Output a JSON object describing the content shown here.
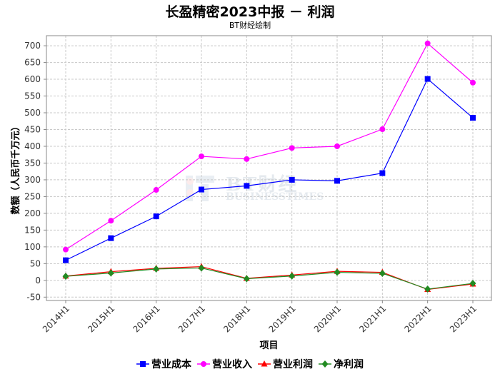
{
  "chart_data": {
    "type": "line",
    "title": "长盈精密2023中报 － 利润",
    "subtitle": "BT财经绘制",
    "xlabel": "项目",
    "ylabel": "数额（人民币千万元）",
    "categories": [
      "2014H1",
      "2015H1",
      "2016H1",
      "2017H1",
      "2018H1",
      "2019H1",
      "2020H1",
      "2021H1",
      "2022H1",
      "2023H1"
    ],
    "ylim": [
      -60,
      730
    ],
    "yticks": [
      -50,
      0,
      50,
      100,
      150,
      200,
      250,
      300,
      350,
      400,
      450,
      500,
      550,
      600,
      650,
      700
    ],
    "grid": true,
    "legend_position": "bottom",
    "series": [
      {
        "name": "营业成本",
        "color": "#0000ff",
        "marker": "square",
        "values": [
          60,
          126,
          191,
          271,
          282,
          300,
          297,
          320,
          601,
          485
        ]
      },
      {
        "name": "营业收入",
        "color": "#ff00ff",
        "marker": "circle",
        "values": [
          92,
          178,
          270,
          370,
          362,
          395,
          400,
          451,
          707,
          590
        ]
      },
      {
        "name": "营业利润",
        "color": "#ff0000",
        "marker": "triangle",
        "values": [
          13,
          26,
          36,
          41,
          6,
          16,
          27,
          24,
          -27,
          -11
        ]
      },
      {
        "name": "净利润",
        "color": "#228b22",
        "marker": "diamond",
        "values": [
          12,
          22,
          34,
          37,
          5,
          13,
          24,
          21,
          -26,
          -9
        ]
      }
    ]
  },
  "watermark": {
    "big": "BT财经",
    "small": "BUSINESSTIMES"
  }
}
